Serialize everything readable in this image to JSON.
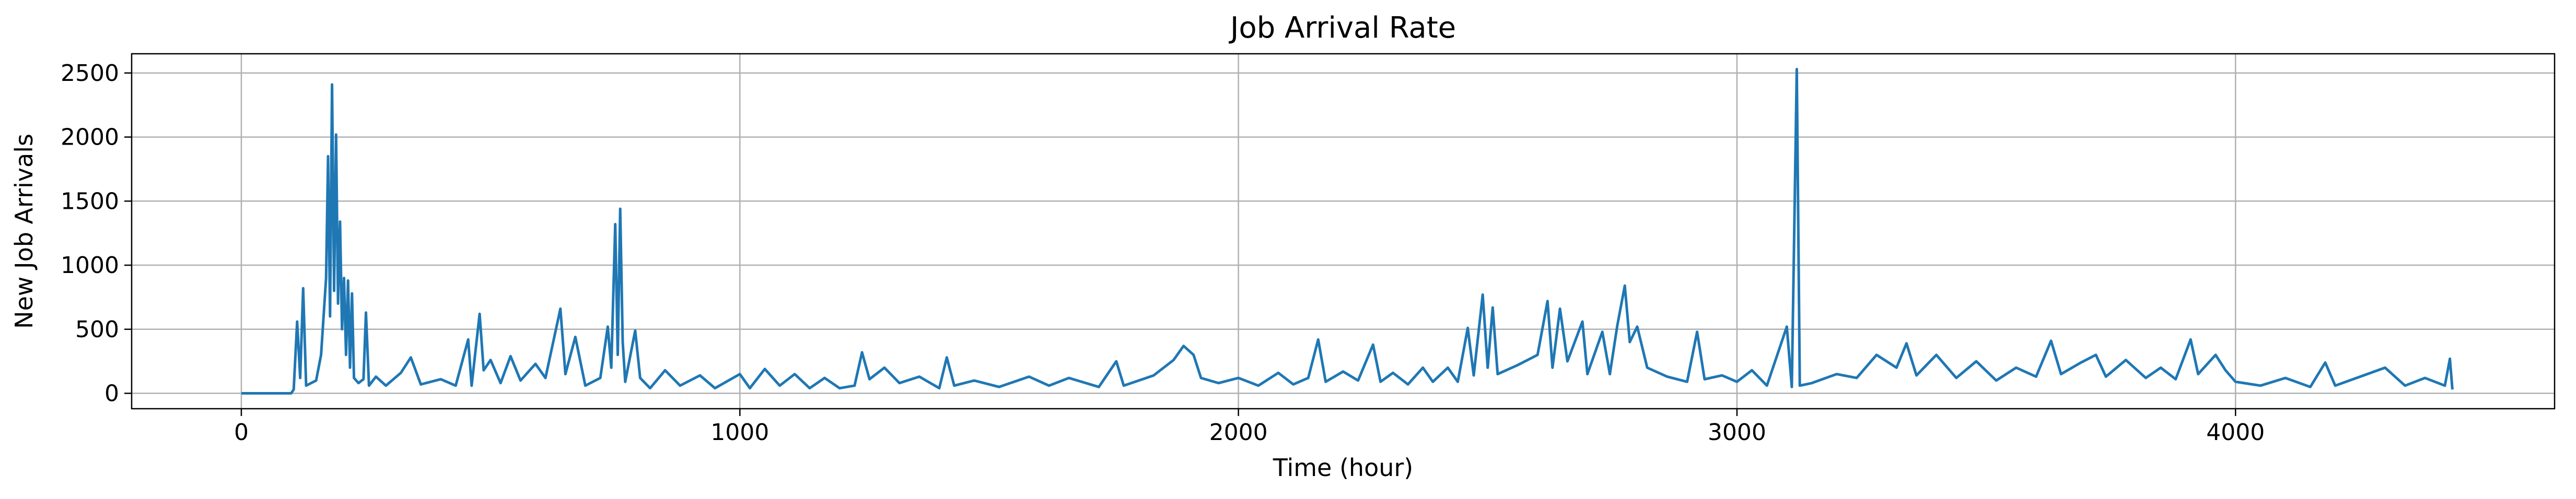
{
  "chart_data": {
    "type": "line",
    "title": "Job Arrival Rate",
    "xlabel": "Time (hour)",
    "ylabel": "New Job Arrivals",
    "xlim": [
      -220,
      4640
    ],
    "ylim": [
      -120,
      2650
    ],
    "xticks": [
      0,
      1000,
      2000,
      3000,
      4000
    ],
    "yticks": [
      0,
      500,
      1000,
      1500,
      2000,
      2500
    ],
    "xtick_labels": [
      "0",
      "1000",
      "2000",
      "3000",
      "4000"
    ],
    "ytick_labels": [
      "0",
      "500",
      "1000",
      "1500",
      "2000",
      "2500"
    ],
    "grid": true,
    "legend": "none",
    "series": [
      {
        "name": "New Job Arrivals",
        "color": "#1f77b4",
        "points": [
          [
            0,
            0
          ],
          [
            100,
            0
          ],
          [
            105,
            30
          ],
          [
            112,
            560
          ],
          [
            118,
            120
          ],
          [
            124,
            820
          ],
          [
            130,
            60
          ],
          [
            150,
            100
          ],
          [
            160,
            300
          ],
          [
            170,
            900
          ],
          [
            174,
            1850
          ],
          [
            178,
            600
          ],
          [
            182,
            2410
          ],
          [
            186,
            800
          ],
          [
            190,
            2020
          ],
          [
            194,
            700
          ],
          [
            198,
            1340
          ],
          [
            202,
            500
          ],
          [
            206,
            900
          ],
          [
            210,
            300
          ],
          [
            214,
            880
          ],
          [
            218,
            200
          ],
          [
            222,
            780
          ],
          [
            226,
            120
          ],
          [
            235,
            80
          ],
          [
            245,
            110
          ],
          [
            250,
            630
          ],
          [
            256,
            60
          ],
          [
            270,
            130
          ],
          [
            290,
            60
          ],
          [
            320,
            160
          ],
          [
            340,
            280
          ],
          [
            360,
            70
          ],
          [
            400,
            110
          ],
          [
            430,
            60
          ],
          [
            455,
            420
          ],
          [
            462,
            60
          ],
          [
            478,
            620
          ],
          [
            486,
            180
          ],
          [
            500,
            260
          ],
          [
            520,
            80
          ],
          [
            540,
            290
          ],
          [
            560,
            100
          ],
          [
            590,
            230
          ],
          [
            610,
            120
          ],
          [
            640,
            660
          ],
          [
            650,
            150
          ],
          [
            670,
            440
          ],
          [
            690,
            60
          ],
          [
            720,
            120
          ],
          [
            735,
            520
          ],
          [
            742,
            200
          ],
          [
            750,
            1320
          ],
          [
            755,
            300
          ],
          [
            760,
            1440
          ],
          [
            765,
            400
          ],
          [
            770,
            90
          ],
          [
            790,
            490
          ],
          [
            800,
            120
          ],
          [
            820,
            40
          ],
          [
            850,
            180
          ],
          [
            880,
            60
          ],
          [
            920,
            140
          ],
          [
            950,
            40
          ],
          [
            1000,
            150
          ],
          [
            1020,
            40
          ],
          [
            1050,
            190
          ],
          [
            1080,
            60
          ],
          [
            1110,
            150
          ],
          [
            1140,
            40
          ],
          [
            1170,
            120
          ],
          [
            1200,
            40
          ],
          [
            1230,
            60
          ],
          [
            1245,
            320
          ],
          [
            1260,
            110
          ],
          [
            1290,
            200
          ],
          [
            1320,
            80
          ],
          [
            1360,
            130
          ],
          [
            1400,
            40
          ],
          [
            1415,
            280
          ],
          [
            1430,
            60
          ],
          [
            1470,
            100
          ],
          [
            1520,
            50
          ],
          [
            1580,
            130
          ],
          [
            1620,
            60
          ],
          [
            1660,
            120
          ],
          [
            1720,
            50
          ],
          [
            1755,
            250
          ],
          [
            1770,
            60
          ],
          [
            1830,
            140
          ],
          [
            1870,
            260
          ],
          [
            1890,
            370
          ],
          [
            1910,
            300
          ],
          [
            1925,
            120
          ],
          [
            1960,
            80
          ],
          [
            2000,
            120
          ],
          [
            2040,
            60
          ],
          [
            2080,
            160
          ],
          [
            2110,
            70
          ],
          [
            2140,
            120
          ],
          [
            2160,
            420
          ],
          [
            2175,
            90
          ],
          [
            2210,
            170
          ],
          [
            2240,
            100
          ],
          [
            2270,
            380
          ],
          [
            2285,
            90
          ],
          [
            2310,
            160
          ],
          [
            2340,
            70
          ],
          [
            2370,
            200
          ],
          [
            2390,
            90
          ],
          [
            2420,
            200
          ],
          [
            2440,
            90
          ],
          [
            2460,
            510
          ],
          [
            2472,
            140
          ],
          [
            2490,
            770
          ],
          [
            2500,
            200
          ],
          [
            2510,
            670
          ],
          [
            2520,
            150
          ],
          [
            2560,
            220
          ],
          [
            2600,
            300
          ],
          [
            2620,
            720
          ],
          [
            2630,
            200
          ],
          [
            2645,
            660
          ],
          [
            2660,
            250
          ],
          [
            2690,
            560
          ],
          [
            2700,
            150
          ],
          [
            2730,
            480
          ],
          [
            2745,
            150
          ],
          [
            2760,
            530
          ],
          [
            2775,
            840
          ],
          [
            2785,
            400
          ],
          [
            2800,
            520
          ],
          [
            2820,
            200
          ],
          [
            2860,
            130
          ],
          [
            2900,
            90
          ],
          [
            2920,
            480
          ],
          [
            2935,
            110
          ],
          [
            2970,
            140
          ],
          [
            3000,
            90
          ],
          [
            3030,
            180
          ],
          [
            3060,
            60
          ],
          [
            3100,
            520
          ],
          [
            3110,
            50
          ],
          [
            3120,
            2530
          ],
          [
            3126,
            60
          ],
          [
            3150,
            80
          ],
          [
            3200,
            150
          ],
          [
            3240,
            120
          ],
          [
            3280,
            300
          ],
          [
            3320,
            200
          ],
          [
            3340,
            390
          ],
          [
            3360,
            140
          ],
          [
            3400,
            300
          ],
          [
            3440,
            120
          ],
          [
            3480,
            250
          ],
          [
            3520,
            100
          ],
          [
            3560,
            200
          ],
          [
            3600,
            130
          ],
          [
            3630,
            410
          ],
          [
            3650,
            150
          ],
          [
            3690,
            240
          ],
          [
            3720,
            300
          ],
          [
            3740,
            130
          ],
          [
            3780,
            260
          ],
          [
            3820,
            120
          ],
          [
            3850,
            200
          ],
          [
            3880,
            110
          ],
          [
            3910,
            420
          ],
          [
            3925,
            150
          ],
          [
            3960,
            300
          ],
          [
            3980,
            180
          ],
          [
            4000,
            90
          ],
          [
            4050,
            60
          ],
          [
            4100,
            120
          ],
          [
            4150,
            50
          ],
          [
            4180,
            240
          ],
          [
            4200,
            60
          ],
          [
            4250,
            130
          ],
          [
            4300,
            200
          ],
          [
            4340,
            60
          ],
          [
            4380,
            120
          ],
          [
            4420,
            60
          ],
          [
            4430,
            270
          ],
          [
            4435,
            30
          ]
        ]
      }
    ]
  }
}
